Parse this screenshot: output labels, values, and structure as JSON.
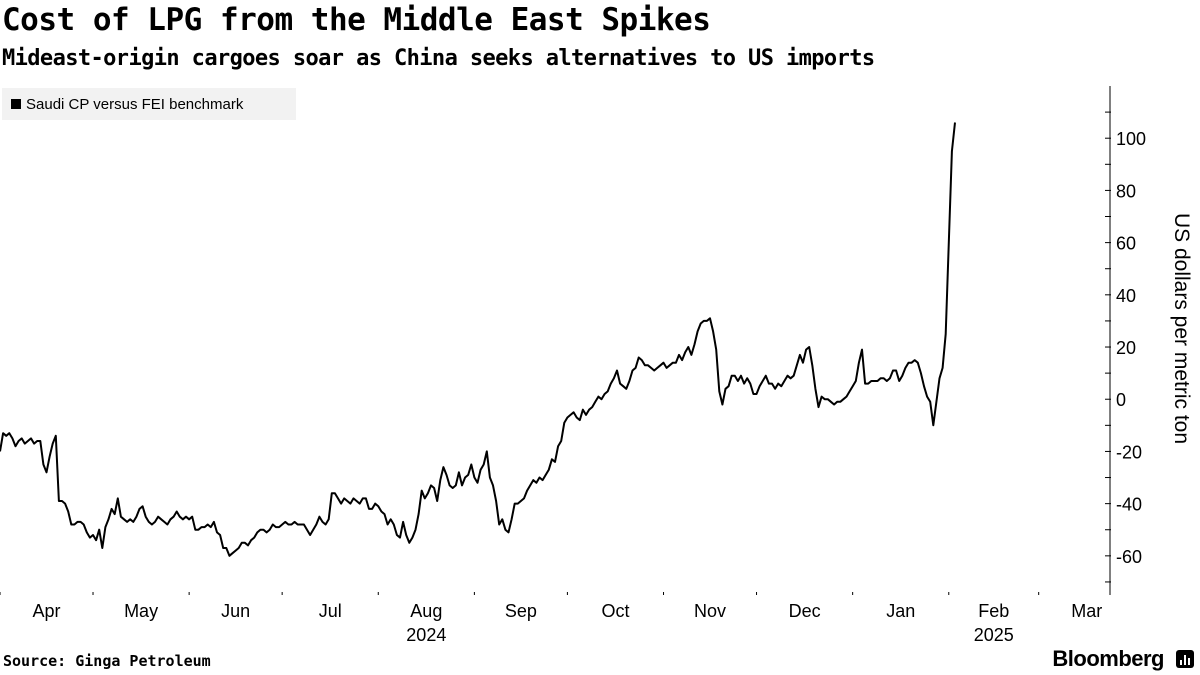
{
  "header": {
    "title": "Cost of LPG from the Middle East Spikes",
    "subtitle": "Mideast-origin cargoes soar as China seeks alternatives to US imports"
  },
  "footer": {
    "source": "Source: Ginga Petroleum",
    "brand": "Bloomberg"
  },
  "colors": {
    "line": "#000000",
    "legend_bg": "#f2f2f2"
  },
  "chart_data": {
    "type": "line",
    "title": "Cost of LPG from the Middle East Spikes",
    "subtitle": "Mideast-origin cargoes soar as China seeks alternatives to US imports",
    "ylabel": "US dollars per metric ton",
    "xlabel": "",
    "ylim": [
      -75,
      120
    ],
    "xlim": [
      0,
      358
    ],
    "yticks": [
      -60,
      -40,
      -20,
      0,
      20,
      40,
      60,
      80,
      100
    ],
    "ytick_labels": [
      "-60",
      "-40",
      "-20",
      "0",
      "20",
      "40",
      "60",
      "80",
      "100"
    ],
    "x_unit": "days since 2024-04-01",
    "month_ticks": [
      0,
      30,
      61,
      91,
      122,
      153,
      183,
      214,
      244,
      275,
      306,
      335
    ],
    "month_labels": [
      {
        "label": "Apr",
        "x": 15
      },
      {
        "label": "May",
        "x": 45.5
      },
      {
        "label": "Jun",
        "x": 76
      },
      {
        "label": "Jul",
        "x": 106.5
      },
      {
        "label": "Aug",
        "x": 137.5
      },
      {
        "label": "Sep",
        "x": 168
      },
      {
        "label": "Oct",
        "x": 198.5
      },
      {
        "label": "Nov",
        "x": 229
      },
      {
        "label": "Dec",
        "x": 259.5
      },
      {
        "label": "Jan",
        "x": 290.5
      },
      {
        "label": "Feb",
        "x": 320.5
      },
      {
        "label": "Mar",
        "x": 350.5
      }
    ],
    "year_labels": [
      {
        "label": "2024",
        "x": 137.5
      },
      {
        "label": "2025",
        "x": 320.5
      }
    ],
    "legend": [
      {
        "name": "Saudi CP versus FEI benchmark",
        "position": "top-left"
      }
    ],
    "series": [
      {
        "name": "Saudi CP versus FEI benchmark",
        "points": [
          [
            0,
            -20
          ],
          [
            1,
            -13
          ],
          [
            2,
            -14
          ],
          [
            3,
            -13
          ],
          [
            4,
            -15
          ],
          [
            5,
            -18
          ],
          [
            6,
            -16
          ],
          [
            7,
            -15
          ],
          [
            8,
            -17
          ],
          [
            9,
            -16
          ],
          [
            10,
            -15
          ],
          [
            11,
            -17
          ],
          [
            12,
            -16
          ],
          [
            13,
            -16
          ],
          [
            14,
            -25
          ],
          [
            15,
            -28
          ],
          [
            16,
            -22
          ],
          [
            17,
            -17
          ],
          [
            18,
            -14
          ],
          [
            19,
            -39
          ],
          [
            20,
            -39
          ],
          [
            21,
            -40
          ],
          [
            22,
            -43
          ],
          [
            23,
            -48
          ],
          [
            24,
            -48
          ],
          [
            25,
            -47
          ],
          [
            26,
            -47
          ],
          [
            27,
            -48
          ],
          [
            28,
            -51
          ],
          [
            29,
            -53
          ],
          [
            30,
            -52
          ],
          [
            31,
            -54
          ],
          [
            32,
            -50
          ],
          [
            33,
            -57
          ],
          [
            34,
            -49
          ],
          [
            35,
            -46
          ],
          [
            36,
            -42
          ],
          [
            37,
            -44
          ],
          [
            38,
            -38
          ],
          [
            39,
            -45
          ],
          [
            40,
            -46
          ],
          [
            41,
            -47
          ],
          [
            42,
            -46
          ],
          [
            43,
            -47
          ],
          [
            44,
            -45
          ],
          [
            45,
            -42
          ],
          [
            46,
            -41
          ],
          [
            47,
            -45
          ],
          [
            48,
            -47
          ],
          [
            49,
            -48
          ],
          [
            50,
            -47
          ],
          [
            51,
            -45
          ],
          [
            52,
            -46
          ],
          [
            53,
            -47
          ],
          [
            54,
            -48
          ],
          [
            55,
            -46
          ],
          [
            56,
            -45
          ],
          [
            57,
            -43
          ],
          [
            58,
            -45
          ],
          [
            59,
            -46
          ],
          [
            60,
            -45
          ],
          [
            61,
            -46
          ],
          [
            62,
            -45
          ],
          [
            63,
            -50
          ],
          [
            64,
            -50
          ],
          [
            65,
            -49
          ],
          [
            66,
            -49
          ],
          [
            67,
            -48
          ],
          [
            68,
            -49
          ],
          [
            69,
            -47
          ],
          [
            70,
            -51
          ],
          [
            71,
            -52
          ],
          [
            72,
            -57
          ],
          [
            73,
            -57
          ],
          [
            74,
            -60
          ],
          [
            75,
            -59
          ],
          [
            76,
            -58
          ],
          [
            77,
            -57
          ],
          [
            78,
            -55
          ],
          [
            79,
            -55
          ],
          [
            80,
            -56
          ],
          [
            81,
            -54
          ],
          [
            82,
            -53
          ],
          [
            83,
            -51
          ],
          [
            84,
            -50
          ],
          [
            85,
            -50
          ],
          [
            86,
            -51
          ],
          [
            87,
            -50
          ],
          [
            88,
            -48
          ],
          [
            89,
            -49
          ],
          [
            90,
            -49
          ],
          [
            91,
            -48
          ],
          [
            92,
            -47
          ],
          [
            93,
            -48
          ],
          [
            94,
            -48
          ],
          [
            95,
            -47
          ],
          [
            96,
            -48
          ],
          [
            97,
            -48
          ],
          [
            98,
            -48
          ],
          [
            99,
            -50
          ],
          [
            100,
            -52
          ],
          [
            101,
            -50
          ],
          [
            102,
            -48
          ],
          [
            103,
            -45
          ],
          [
            104,
            -47
          ],
          [
            105,
            -48
          ],
          [
            106,
            -46
          ],
          [
            107,
            -36
          ],
          [
            108,
            -36
          ],
          [
            109,
            -38
          ],
          [
            110,
            -40
          ],
          [
            111,
            -38
          ],
          [
            112,
            -39
          ],
          [
            113,
            -40
          ],
          [
            114,
            -38
          ],
          [
            115,
            -39
          ],
          [
            116,
            -40
          ],
          [
            117,
            -38
          ],
          [
            118,
            -38
          ],
          [
            119,
            -42
          ],
          [
            120,
            -42
          ],
          [
            121,
            -40
          ],
          [
            122,
            -41
          ],
          [
            123,
            -43
          ],
          [
            124,
            -44
          ],
          [
            125,
            -48
          ],
          [
            126,
            -46
          ],
          [
            127,
            -48
          ],
          [
            128,
            -52
          ],
          [
            129,
            -53
          ],
          [
            130,
            -47
          ],
          [
            131,
            -52
          ],
          [
            132,
            -55
          ],
          [
            133,
            -53
          ],
          [
            134,
            -50
          ],
          [
            135,
            -44
          ],
          [
            136,
            -35
          ],
          [
            137,
            -38
          ],
          [
            138,
            -36
          ],
          [
            139,
            -33
          ],
          [
            140,
            -34
          ],
          [
            141,
            -39
          ],
          [
            142,
            -31
          ],
          [
            143,
            -26
          ],
          [
            144,
            -29
          ],
          [
            145,
            -33
          ],
          [
            146,
            -34
          ],
          [
            147,
            -33
          ],
          [
            148,
            -28
          ],
          [
            149,
            -33
          ],
          [
            150,
            -30
          ],
          [
            151,
            -29
          ],
          [
            152,
            -25
          ],
          [
            153,
            -30
          ],
          [
            154,
            -32
          ],
          [
            155,
            -27
          ],
          [
            156,
            -25
          ],
          [
            157,
            -20
          ],
          [
            158,
            -30
          ],
          [
            159,
            -33
          ],
          [
            160,
            -39
          ],
          [
            161,
            -48
          ],
          [
            162,
            -46
          ],
          [
            163,
            -50
          ],
          [
            164,
            -51
          ],
          [
            165,
            -46
          ],
          [
            166,
            -40
          ],
          [
            167,
            -40
          ],
          [
            168,
            -39
          ],
          [
            169,
            -38
          ],
          [
            170,
            -35
          ],
          [
            171,
            -33
          ],
          [
            172,
            -31
          ],
          [
            173,
            -32
          ],
          [
            174,
            -30
          ],
          [
            175,
            -31
          ],
          [
            176,
            -29
          ],
          [
            177,
            -27
          ],
          [
            178,
            -23
          ],
          [
            179,
            -24
          ],
          [
            180,
            -18
          ],
          [
            181,
            -16
          ],
          [
            182,
            -9
          ],
          [
            183,
            -7
          ],
          [
            184,
            -6
          ],
          [
            185,
            -5
          ],
          [
            186,
            -7
          ],
          [
            187,
            -8
          ],
          [
            188,
            -4
          ],
          [
            189,
            -6
          ],
          [
            190,
            -4
          ],
          [
            191,
            -3
          ],
          [
            192,
            -1
          ],
          [
            193,
            1
          ],
          [
            194,
            0
          ],
          [
            195,
            2
          ],
          [
            196,
            3
          ],
          [
            197,
            6
          ],
          [
            198,
            8
          ],
          [
            199,
            11
          ],
          [
            200,
            6
          ],
          [
            201,
            5
          ],
          [
            202,
            4
          ],
          [
            203,
            7
          ],
          [
            204,
            11
          ],
          [
            205,
            12
          ],
          [
            206,
            16
          ],
          [
            207,
            15
          ],
          [
            208,
            13
          ],
          [
            209,
            13
          ],
          [
            210,
            12
          ],
          [
            211,
            11
          ],
          [
            212,
            12
          ],
          [
            213,
            13
          ],
          [
            214,
            14
          ],
          [
            215,
            12
          ],
          [
            216,
            13
          ],
          [
            217,
            14
          ],
          [
            218,
            14
          ],
          [
            219,
            17
          ],
          [
            220,
            15
          ],
          [
            221,
            18
          ],
          [
            222,
            20
          ],
          [
            223,
            17
          ],
          [
            224,
            21
          ],
          [
            225,
            26
          ],
          [
            226,
            29
          ],
          [
            227,
            30
          ],
          [
            228,
            30
          ],
          [
            229,
            31
          ],
          [
            230,
            26
          ],
          [
            231,
            19
          ],
          [
            232,
            3
          ],
          [
            233,
            -2
          ],
          [
            234,
            4
          ],
          [
            235,
            5
          ],
          [
            236,
            9
          ],
          [
            237,
            9
          ],
          [
            238,
            7
          ],
          [
            239,
            9
          ],
          [
            240,
            6
          ],
          [
            241,
            8
          ],
          [
            242,
            6
          ],
          [
            243,
            2
          ],
          [
            244,
            2
          ],
          [
            245,
            5
          ],
          [
            246,
            7
          ],
          [
            247,
            9
          ],
          [
            248,
            6
          ],
          [
            249,
            6
          ],
          [
            250,
            4
          ],
          [
            251,
            6
          ],
          [
            252,
            5
          ],
          [
            253,
            7
          ],
          [
            254,
            9
          ],
          [
            255,
            8
          ],
          [
            256,
            9
          ],
          [
            257,
            13
          ],
          [
            258,
            17
          ],
          [
            259,
            14
          ],
          [
            260,
            19
          ],
          [
            261,
            20
          ],
          [
            262,
            13
          ],
          [
            263,
            4
          ],
          [
            264,
            -3
          ],
          [
            265,
            1
          ],
          [
            266,
            0
          ],
          [
            267,
            0
          ],
          [
            268,
            -1
          ],
          [
            269,
            -2
          ],
          [
            270,
            -1
          ],
          [
            271,
            -1
          ],
          [
            272,
            0
          ],
          [
            273,
            1
          ],
          [
            274,
            3
          ],
          [
            275,
            5
          ],
          [
            276,
            7
          ],
          [
            277,
            14
          ],
          [
            278,
            19
          ],
          [
            279,
            6
          ],
          [
            280,
            6
          ],
          [
            281,
            7
          ],
          [
            282,
            7
          ],
          [
            283,
            7
          ],
          [
            284,
            8
          ],
          [
            285,
            8
          ],
          [
            286,
            7
          ],
          [
            287,
            8
          ],
          [
            288,
            11
          ],
          [
            289,
            11
          ],
          [
            290,
            7
          ],
          [
            291,
            9
          ],
          [
            292,
            12
          ],
          [
            293,
            14
          ],
          [
            294,
            14
          ],
          [
            295,
            15
          ],
          [
            296,
            14
          ],
          [
            297,
            10
          ],
          [
            298,
            5
          ],
          [
            299,
            1
          ],
          [
            300,
            -1
          ],
          [
            301,
            -10
          ],
          [
            302,
            -1
          ],
          [
            303,
            8
          ],
          [
            304,
            12
          ],
          [
            305,
            25
          ],
          [
            306,
            60
          ],
          [
            307,
            95
          ],
          [
            308,
            106
          ]
        ]
      }
    ]
  }
}
